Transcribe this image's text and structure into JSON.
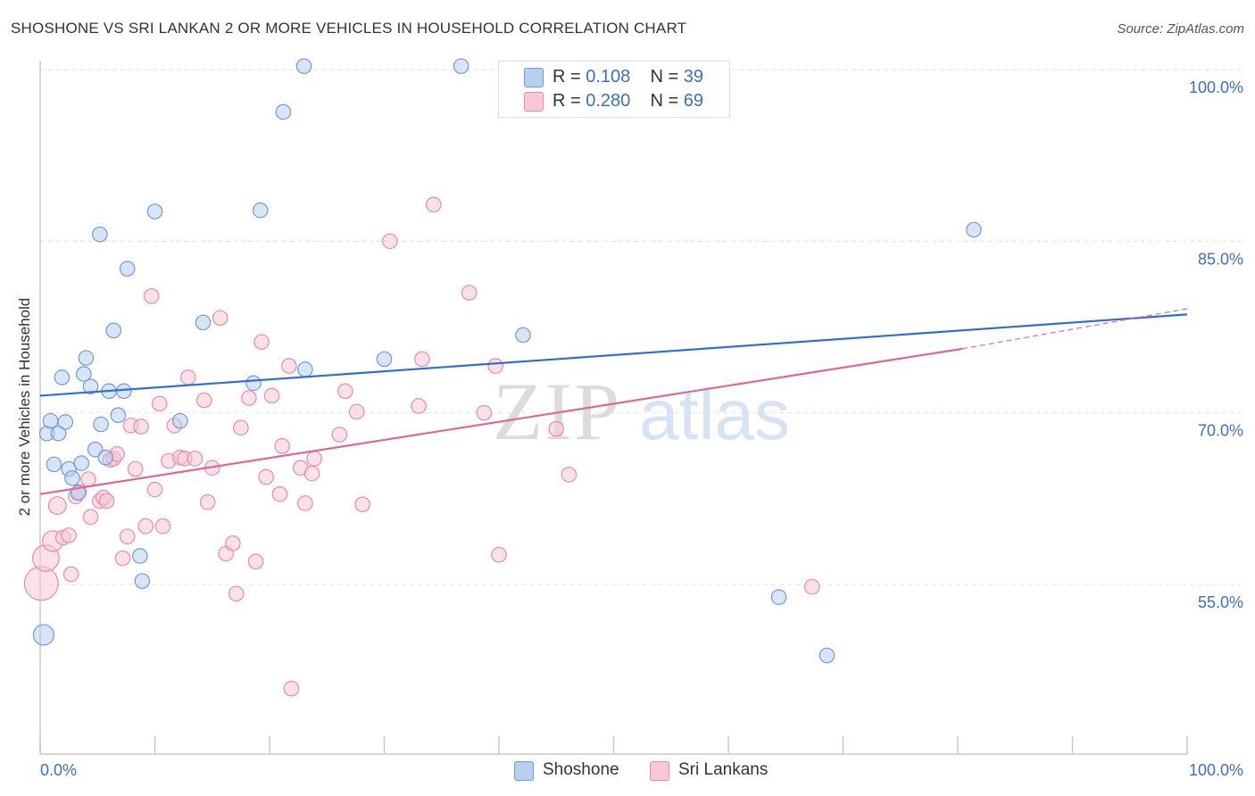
{
  "header": {
    "title": "SHOSHONE VS SRI LANKAN 2 OR MORE VEHICLES IN HOUSEHOLD CORRELATION CHART",
    "source": "Source: ZipAtlas.com"
  },
  "legend": {
    "rows": [
      {
        "r_label": "R =",
        "r_value": "0.108",
        "n_label": "N =",
        "n_value": "39"
      },
      {
        "r_label": "R =",
        "r_value": "0.280",
        "n_label": "N =",
        "n_value": "69"
      }
    ]
  },
  "bottom_legend": {
    "shoshone": "Shoshone",
    "srilankans": "Sri Lankans"
  },
  "watermark": {
    "zip": "ZIP",
    "atlas": "atlas"
  },
  "colors": {
    "shoshone_fill": "#b8d0f0",
    "shoshone_stroke": "#6f9ad8",
    "shoshone_line": "#2e6fce",
    "srilankan_fill": "#f9c8d6",
    "srilankan_stroke": "#e88aa8",
    "srilankan_line": "#e06890",
    "tick_label": "#3b6fc4"
  },
  "chart_data": {
    "type": "scatter",
    "title": "SHOSHONE VS SRI LANKAN 2 OR MORE VEHICLES IN HOUSEHOLD CORRELATION CHART",
    "xlabel": "",
    "ylabel": "2 or more Vehicles in Household",
    "xlim": [
      0,
      100
    ],
    "ylim": [
      40,
      101.5
    ],
    "x_tick_labels": [
      "0.0%",
      "100.0%"
    ],
    "y_ticks": [
      55,
      70,
      85,
      100
    ],
    "y_tick_labels": [
      "55.0%",
      "70.0%",
      "85.0%",
      "100.0%"
    ],
    "grid": "horizontal dashed",
    "legend_placement": "top-center",
    "series": [
      {
        "name": "Shoshone",
        "r": 0.108,
        "n": 39,
        "trend": {
          "x": [
            0,
            100
          ],
          "y": [
            71.5,
            78.6
          ]
        },
        "points": [
          {
            "x": 0.3,
            "y": 50.6,
            "s": 1.4
          },
          {
            "x": 0.6,
            "y": 68.2
          },
          {
            "x": 0.9,
            "y": 69.3
          },
          {
            "x": 1.2,
            "y": 65.5
          },
          {
            "x": 1.6,
            "y": 68.2
          },
          {
            "x": 1.9,
            "y": 73.1
          },
          {
            "x": 2.2,
            "y": 69.2
          },
          {
            "x": 2.5,
            "y": 65.1
          },
          {
            "x": 2.8,
            "y": 64.3
          },
          {
            "x": 3.3,
            "y": 63.0
          },
          {
            "x": 3.6,
            "y": 65.6
          },
          {
            "x": 3.8,
            "y": 73.4
          },
          {
            "x": 4.0,
            "y": 74.8
          },
          {
            "x": 4.4,
            "y": 72.3
          },
          {
            "x": 4.8,
            "y": 66.8
          },
          {
            "x": 5.2,
            "y": 85.6
          },
          {
            "x": 5.3,
            "y": 69.0
          },
          {
            "x": 5.7,
            "y": 66.1
          },
          {
            "x": 6.0,
            "y": 71.9
          },
          {
            "x": 6.4,
            "y": 77.2
          },
          {
            "x": 6.8,
            "y": 69.8
          },
          {
            "x": 7.3,
            "y": 71.9
          },
          {
            "x": 7.6,
            "y": 82.6
          },
          {
            "x": 8.7,
            "y": 57.5
          },
          {
            "x": 8.9,
            "y": 55.3
          },
          {
            "x": 10.0,
            "y": 87.6
          },
          {
            "x": 12.2,
            "y": 69.3
          },
          {
            "x": 14.2,
            "y": 77.9
          },
          {
            "x": 18.6,
            "y": 72.6
          },
          {
            "x": 19.2,
            "y": 87.7
          },
          {
            "x": 21.2,
            "y": 96.3
          },
          {
            "x": 23.0,
            "y": 100.3
          },
          {
            "x": 23.1,
            "y": 73.8
          },
          {
            "x": 30.0,
            "y": 74.7
          },
          {
            "x": 36.7,
            "y": 100.3
          },
          {
            "x": 42.1,
            "y": 76.8
          },
          {
            "x": 64.4,
            "y": 53.9
          },
          {
            "x": 68.6,
            "y": 48.8
          },
          {
            "x": 81.4,
            "y": 86.0
          }
        ]
      },
      {
        "name": "Sri Lankans",
        "r": 0.28,
        "n": 69,
        "trend": {
          "x": [
            0,
            80.4
          ],
          "y": [
            62.9,
            75.6
          ]
        },
        "trend_extension": {
          "x": [
            80.4,
            100
          ],
          "y": [
            75.6,
            79.1
          ]
        },
        "points": [
          {
            "x": 0.1,
            "y": 55.1,
            "s": 2.3
          },
          {
            "x": 0.5,
            "y": 57.3,
            "s": 1.8
          },
          {
            "x": 1.1,
            "y": 58.8,
            "s": 1.4
          },
          {
            "x": 1.5,
            "y": 61.9,
            "s": 1.2
          },
          {
            "x": 2.0,
            "y": 59.1
          },
          {
            "x": 2.5,
            "y": 59.3
          },
          {
            "x": 2.7,
            "y": 55.9
          },
          {
            "x": 3.1,
            "y": 62.7
          },
          {
            "x": 3.4,
            "y": 63.1
          },
          {
            "x": 4.2,
            "y": 64.2
          },
          {
            "x": 4.4,
            "y": 60.9
          },
          {
            "x": 5.2,
            "y": 62.3
          },
          {
            "x": 5.5,
            "y": 62.6
          },
          {
            "x": 5.8,
            "y": 62.3
          },
          {
            "x": 6.1,
            "y": 65.9
          },
          {
            "x": 6.4,
            "y": 66.0
          },
          {
            "x": 6.7,
            "y": 66.4
          },
          {
            "x": 7.2,
            "y": 57.3
          },
          {
            "x": 7.6,
            "y": 59.2
          },
          {
            "x": 7.9,
            "y": 68.9
          },
          {
            "x": 8.3,
            "y": 65.1
          },
          {
            "x": 8.8,
            "y": 68.8
          },
          {
            "x": 9.2,
            "y": 60.1
          },
          {
            "x": 9.7,
            "y": 80.2
          },
          {
            "x": 10.0,
            "y": 63.3
          },
          {
            "x": 10.4,
            "y": 70.8
          },
          {
            "x": 10.7,
            "y": 60.1
          },
          {
            "x": 11.2,
            "y": 65.8
          },
          {
            "x": 11.7,
            "y": 68.9
          },
          {
            "x": 12.2,
            "y": 66.1
          },
          {
            "x": 12.6,
            "y": 66.0
          },
          {
            "x": 12.9,
            "y": 73.1
          },
          {
            "x": 13.5,
            "y": 66.0
          },
          {
            "x": 14.3,
            "y": 71.1
          },
          {
            "x": 14.6,
            "y": 62.2
          },
          {
            "x": 15.0,
            "y": 65.2
          },
          {
            "x": 15.7,
            "y": 78.3
          },
          {
            "x": 16.2,
            "y": 57.7
          },
          {
            "x": 16.8,
            "y": 58.6
          },
          {
            "x": 17.1,
            "y": 54.2
          },
          {
            "x": 17.5,
            "y": 68.7
          },
          {
            "x": 18.2,
            "y": 71.3
          },
          {
            "x": 18.8,
            "y": 57.0
          },
          {
            "x": 19.3,
            "y": 76.2
          },
          {
            "x": 19.7,
            "y": 64.4
          },
          {
            "x": 20.2,
            "y": 71.5
          },
          {
            "x": 20.9,
            "y": 62.9
          },
          {
            "x": 21.1,
            "y": 67.1
          },
          {
            "x": 21.7,
            "y": 74.1
          },
          {
            "x": 21.9,
            "y": 45.9
          },
          {
            "x": 22.7,
            "y": 65.2
          },
          {
            "x": 23.1,
            "y": 62.1
          },
          {
            "x": 23.7,
            "y": 64.7
          },
          {
            "x": 23.9,
            "y": 66.0
          },
          {
            "x": 26.1,
            "y": 68.1
          },
          {
            "x": 26.6,
            "y": 71.9
          },
          {
            "x": 27.6,
            "y": 70.1
          },
          {
            "x": 28.1,
            "y": 62.0
          },
          {
            "x": 30.5,
            "y": 85.0
          },
          {
            "x": 33.0,
            "y": 70.6
          },
          {
            "x": 33.3,
            "y": 74.7
          },
          {
            "x": 34.3,
            "y": 88.2
          },
          {
            "x": 37.4,
            "y": 80.5
          },
          {
            "x": 38.7,
            "y": 70.0
          },
          {
            "x": 39.7,
            "y": 74.1
          },
          {
            "x": 40.0,
            "y": 57.6
          },
          {
            "x": 45.0,
            "y": 68.6
          },
          {
            "x": 46.1,
            "y": 64.6
          },
          {
            "x": 67.3,
            "y": 54.8
          }
        ]
      }
    ]
  }
}
